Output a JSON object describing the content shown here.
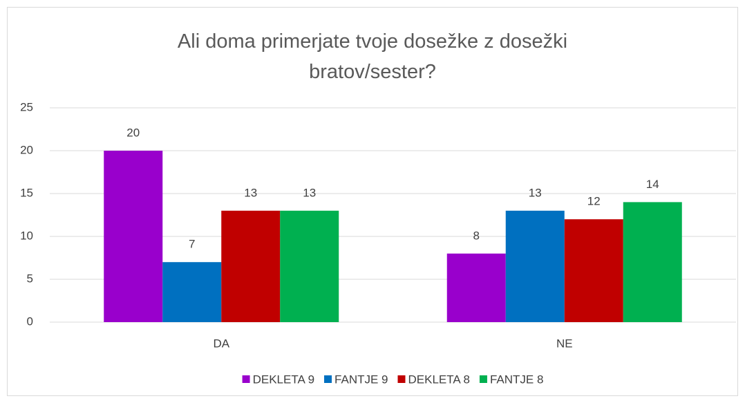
{
  "chart_data": {
    "type": "bar",
    "title": "Ali doma primerjate tvoje dosežke z dosežki bratov/sester?",
    "categories": [
      "DA",
      "NE"
    ],
    "series": [
      {
        "name": "DEKLETA 9",
        "color": "#9900cc",
        "values": [
          20,
          8
        ]
      },
      {
        "name": "FANTJE 9",
        "color": "#0070c0",
        "values": [
          7,
          13
        ]
      },
      {
        "name": "DEKLETA 8",
        "color": "#c00000",
        "values": [
          13,
          12
        ]
      },
      {
        "name": "FANTJE 8",
        "color": "#00b050",
        "values": [
          13,
          14
        ]
      }
    ],
    "ylim": [
      0,
      25
    ],
    "yticks": [
      0,
      5,
      10,
      15,
      20,
      25
    ],
    "grid": true,
    "legend": "bottom"
  }
}
